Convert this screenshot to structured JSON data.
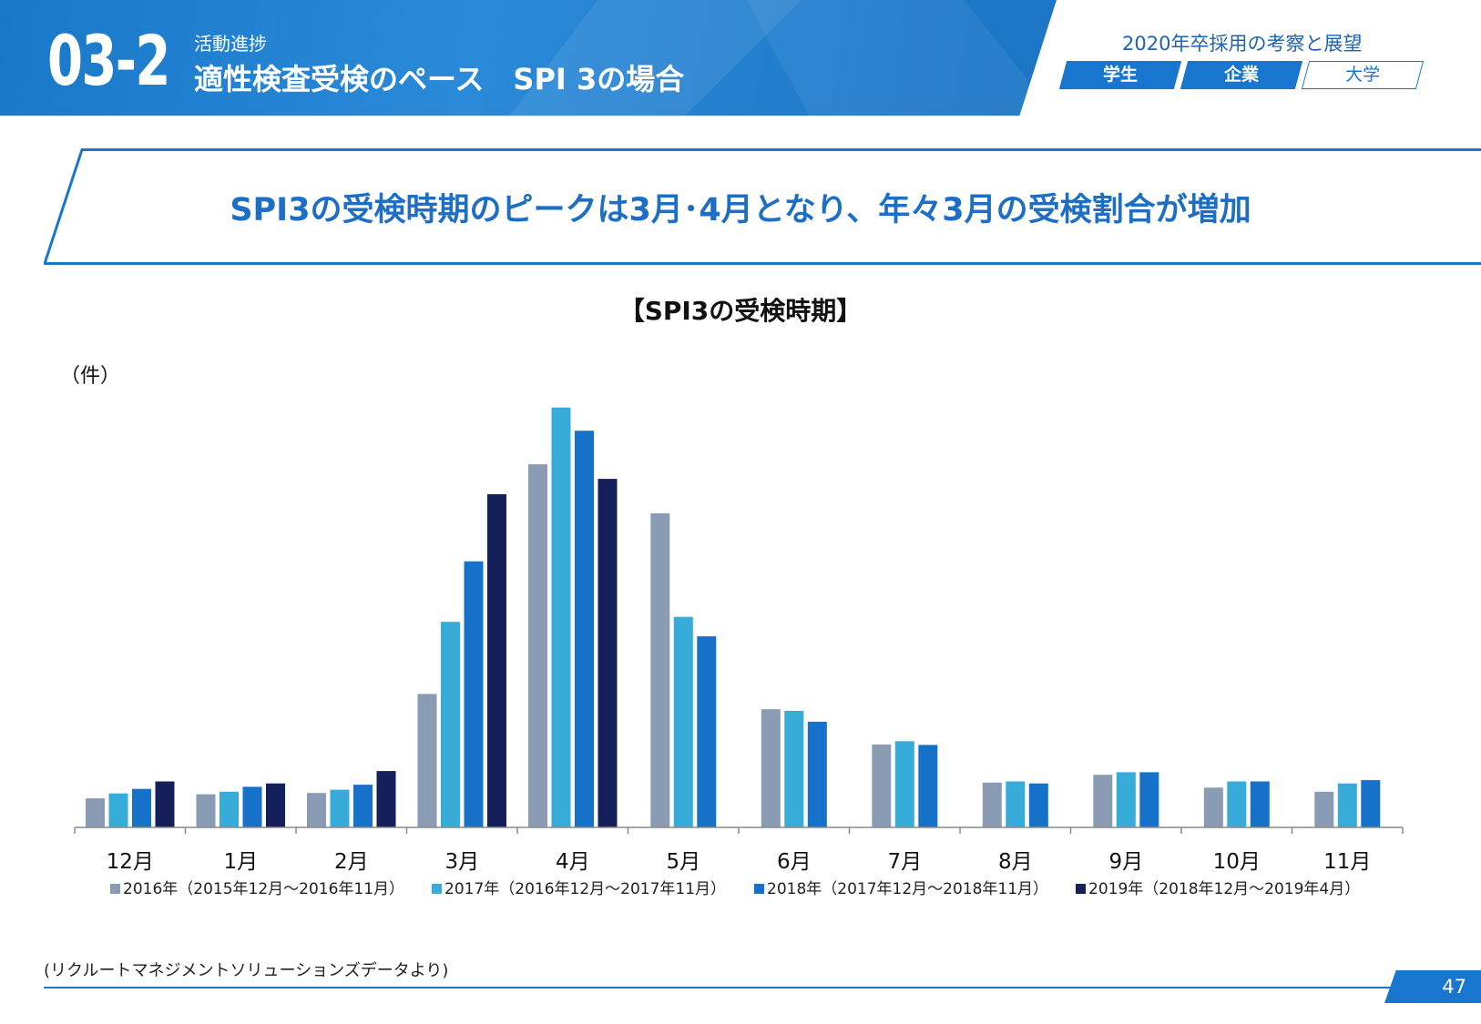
{
  "header": {
    "section_number": "03-2",
    "section_subtitle": "活動進捗",
    "section_title": "適性検査受検のペース　SPI 3の場合",
    "report_title": "2020年卒採用の考察と展望",
    "tags": [
      {
        "label": "学生",
        "style": "filled"
      },
      {
        "label": "企業",
        "style": "filled"
      },
      {
        "label": "大学",
        "style": "outline"
      }
    ]
  },
  "headline": "SPI3の受検時期のピークは3月･4月となり、年々3月の受検割合が増加",
  "unit_label": "（件）",
  "source_note": "(リクルートマネジメントソリューションズデータより)",
  "page_number": "47",
  "colors": {
    "accent": "#1976cf",
    "series": [
      "#8a9bb4",
      "#38acd9",
      "#1671c9",
      "#151f5a"
    ]
  },
  "chart_data": {
    "type": "bar",
    "title": "【SPI3の受検時期】",
    "ylabel": "（件）",
    "xlabel": "",
    "ylim": [
      0,
      100
    ],
    "categories": [
      "12月",
      "1月",
      "2月",
      "3月",
      "4月",
      "5月",
      "6月",
      "7月",
      "8月",
      "9月",
      "10月",
      "11月"
    ],
    "series": [
      {
        "name": "2016年（2015年12月～2016年11月）",
        "values": [
          7,
          8,
          8.3,
          32.2,
          87.6,
          75.8,
          28.5,
          20,
          10.8,
          12.7,
          9.6,
          8.6
        ]
      },
      {
        "name": "2017年（2016年12月～2017年11月）",
        "values": [
          8.2,
          8.6,
          9.1,
          49.6,
          101.3,
          50.8,
          28.1,
          20.8,
          11.1,
          13.3,
          11.1,
          10.6
        ]
      },
      {
        "name": "2018年（2017年12月～2018年11月）",
        "values": [
          9.3,
          9.8,
          10.3,
          64.2,
          95.7,
          46.1,
          25.5,
          19.9,
          10.6,
          13.3,
          11.1,
          11.4
        ]
      },
      {
        "name": "2019年（2018年12月～2019年4月）",
        "values": [
          11.1,
          10.6,
          13.6,
          80.4,
          84.1,
          null,
          null,
          null,
          null,
          null,
          null,
          null
        ]
      }
    ],
    "grid": false,
    "legend_position": "bottom"
  }
}
